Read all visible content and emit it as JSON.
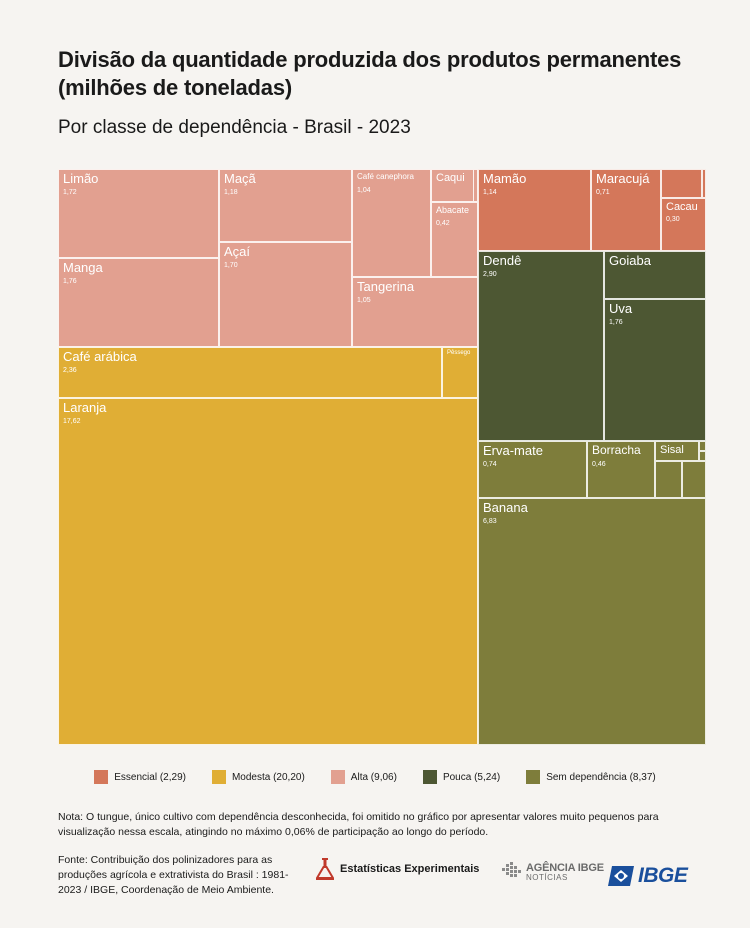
{
  "header": {
    "title": "Divisão da quantidade produzida dos produtos permanentes (milhões de toneladas)",
    "subtitle": "Por classe de dependência - Brasil - 2023"
  },
  "chart_data": {
    "type": "treemap",
    "title": "Divisão da quantidade produzida dos produtos permanentes (milhões de toneladas)",
    "subtitle": "Por classe de dependência - Brasil - 2023",
    "unit": "milhões de toneladas",
    "groups": [
      {
        "key": "essencial",
        "name": "Essencial",
        "total": "2,29",
        "color": "#d4775a",
        "items": [
          {
            "name": "Mamão",
            "value": "1,14"
          },
          {
            "name": "Maracujá",
            "value": "0,71"
          },
          {
            "name": "Cacau",
            "value": "0,30"
          },
          {
            "name": "",
            "value": ""
          },
          {
            "name": "",
            "value": ""
          }
        ]
      },
      {
        "key": "modesta",
        "name": "Modesta",
        "total": "20,20",
        "color": "#e0ae35",
        "items": [
          {
            "name": "Café arábica",
            "value": "2,36"
          },
          {
            "name": "Pêssego",
            "value": ""
          },
          {
            "name": "Laranja",
            "value": "17,62"
          }
        ]
      },
      {
        "key": "alta",
        "name": "Alta",
        "total": "9,06",
        "color": "#e2a090",
        "items": [
          {
            "name": "Limão",
            "value": "1,72"
          },
          {
            "name": "Manga",
            "value": "1,76"
          },
          {
            "name": "Maçã",
            "value": "1,18"
          },
          {
            "name": "Açaí",
            "value": "1,70"
          },
          {
            "name": "Café canephora",
            "value": "1,04"
          },
          {
            "name": "Caqui",
            "value": ""
          },
          {
            "name": "",
            "value": ""
          },
          {
            "name": "Abacate",
            "value": "0,42"
          },
          {
            "name": "Tangerina",
            "value": "1,05"
          }
        ]
      },
      {
        "key": "pouca",
        "name": "Pouca",
        "total": "5,24",
        "color": "#4d5733",
        "items": [
          {
            "name": "Dendê",
            "value": "2,90"
          },
          {
            "name": "Goiaba",
            "value": ""
          },
          {
            "name": "Uva",
            "value": "1,76"
          }
        ]
      },
      {
        "key": "sem",
        "name": "Sem dependência",
        "total": "8,37",
        "color": "#7e7d3b",
        "items": [
          {
            "name": "Erva-mate",
            "value": "0,74"
          },
          {
            "name": "Borracha",
            "value": "0,46"
          },
          {
            "name": "Sisal",
            "value": ""
          },
          {
            "name": "",
            "value": ""
          },
          {
            "name": "",
            "value": ""
          },
          {
            "name": "",
            "value": ""
          },
          {
            "name": "",
            "value": ""
          },
          {
            "name": "",
            "value": ""
          },
          {
            "name": "Banana",
            "value": "6,83"
          }
        ]
      }
    ]
  },
  "legend": [
    {
      "label": "Essencial (2,29)",
      "color": "#d4775a"
    },
    {
      "label": "Modesta (20,20)",
      "color": "#e0ae35"
    },
    {
      "label": "Alta (9,06)",
      "color": "#e2a090"
    },
    {
      "label": "Pouca (5,24)",
      "color": "#4d5733"
    },
    {
      "label": "Sem dependência (8,37)",
      "color": "#7e7d3b"
    }
  ],
  "note": "Nota: O tungue, único cultivo com dependência desconhecida, foi omitido no gráfico por apresentar valores muito pequenos para visualização nessa escala, atingindo no máximo 0,06% de participação ao longo do período.",
  "source": "Fonte: Contribuição dos polinizadores para as produções agrícola e extrativista do Brasil : 1981-2023 / IBGE, Coordenação de Meio Ambiente.",
  "logos": {
    "stats": "Estatísticas Experimentais",
    "agencia": "AGÊNCIA IBGE",
    "agencia_sub": "NOTÍCIAS",
    "ibge": "IBGE"
  }
}
